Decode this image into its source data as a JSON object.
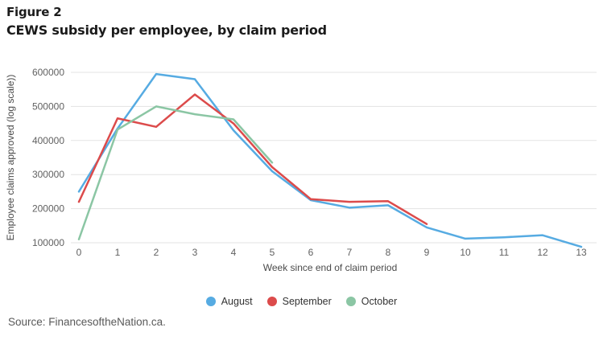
{
  "header": {
    "figure_label": "Figure 2",
    "title": "CEWS subsidy per employee, by claim period"
  },
  "source": {
    "text": "Source: FinancesoftheNation.ca."
  },
  "colors": {
    "august": "#56ABE2",
    "september": "#DC4B4B",
    "october": "#8BC6A4",
    "gridline": "#e3e3e3",
    "tick_text": "#616161",
    "axis_title_text": "#4a4a4a"
  },
  "chart_data": {
    "type": "line",
    "title": "CEWS subsidy per employee, by claim period",
    "xlabel": "Week since end of claim period",
    "ylabel": "Employee claims approved (log scale))",
    "x": [
      0,
      1,
      2,
      3,
      4,
      5,
      6,
      7,
      8,
      9,
      10,
      11,
      12,
      13
    ],
    "xticks": [
      0,
      1,
      2,
      3,
      4,
      5,
      6,
      7,
      8,
      9,
      10,
      11,
      12,
      13
    ],
    "yticks": [
      100000,
      200000,
      300000,
      400000,
      500000,
      600000
    ],
    "ylim": [
      100000,
      600000
    ],
    "grid": true,
    "legend_position": "bottom",
    "series": [
      {
        "name": "August",
        "color": "#56ABE2",
        "values": [
          250000,
          435000,
          595000,
          580000,
          430000,
          310000,
          225000,
          203000,
          210000,
          145000,
          112000,
          116000,
          122000,
          88000
        ]
      },
      {
        "name": "September",
        "color": "#DC4B4B",
        "values": [
          220000,
          465000,
          440000,
          535000,
          450000,
          322000,
          228000,
          220000,
          222000,
          155000
        ]
      },
      {
        "name": "October",
        "color": "#8BC6A4",
        "values": [
          110000,
          432000,
          500000,
          477000,
          462000,
          335000
        ]
      }
    ]
  }
}
